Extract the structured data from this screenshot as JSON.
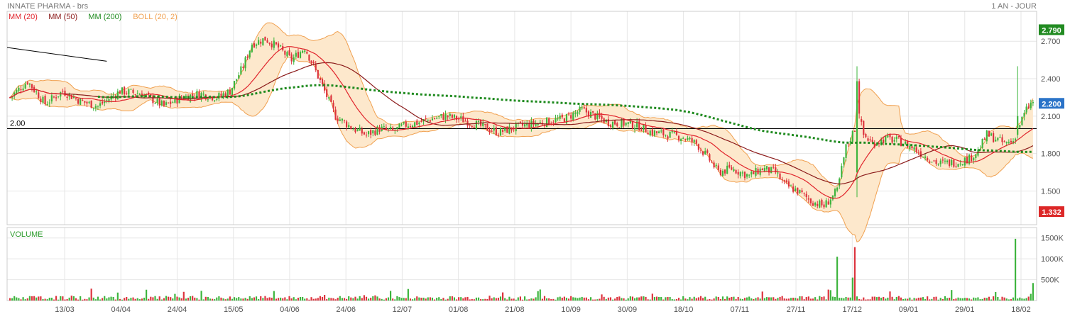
{
  "header": {
    "title": "INNATE PHARMA - brs",
    "period": "1 AN - JOUR"
  },
  "legend": [
    {
      "label": "MM (20)",
      "color": "#e0242c"
    },
    {
      "label": "MM (50)",
      "color": "#8b1a1a"
    },
    {
      "label": "MM (200)",
      "color": "#1e8a1e"
    },
    {
      "label": "BOLL (20, 2)",
      "color": "#f0a050"
    }
  ],
  "colors": {
    "up": "#3cb43c",
    "down": "#dc323c",
    "boll_fill": "#fde8cc",
    "boll_line": "#f0a050",
    "grid": "#e6e6e6"
  },
  "chart_data": [
    {
      "type": "candlestick",
      "title": "INNATE PHARMA - brs",
      "x_tick_labels": [
        "13/03",
        "04/04",
        "24/04",
        "15/05",
        "04/06",
        "24/06",
        "12/07",
        "01/08",
        "21/08",
        "10/09",
        "30/09",
        "18/10",
        "07/11",
        "27/11",
        "17/12",
        "09/01",
        "29/01",
        "18/02"
      ],
      "y_ticks": [
        1.5,
        1.8,
        2.1,
        2.4,
        2.7
      ],
      "y_tick_labels": [
        "1.500",
        "1.800",
        "2.100",
        "2.400",
        "2.700"
      ],
      "ylim": [
        1.23,
        2.94
      ],
      "reference_line": {
        "value": 2.0,
        "label": "2.00"
      },
      "badges": [
        {
          "label": "2.790",
          "value": 2.79,
          "color": "#228b22"
        },
        {
          "label": "2.200",
          "value": 2.2,
          "color": "#2a73c8"
        },
        {
          "label": "1.332",
          "value": 1.332,
          "color": "#dc2828"
        }
      ],
      "anchors": [
        [
          0,
          2.25
        ],
        [
          8,
          2.38
        ],
        [
          16,
          2.2
        ],
        [
          24,
          2.3
        ],
        [
          32,
          2.22
        ],
        [
          40,
          2.18
        ],
        [
          50,
          2.3
        ],
        [
          60,
          2.28
        ],
        [
          70,
          2.18
        ],
        [
          78,
          2.25
        ],
        [
          86,
          2.28
        ],
        [
          94,
          2.25
        ],
        [
          100,
          2.3
        ],
        [
          106,
          2.5
        ],
        [
          110,
          2.68
        ],
        [
          116,
          2.72
        ],
        [
          122,
          2.65
        ],
        [
          128,
          2.55
        ],
        [
          134,
          2.65
        ],
        [
          138,
          2.5
        ],
        [
          143,
          2.3
        ],
        [
          148,
          2.1
        ],
        [
          152,
          2.05
        ],
        [
          156,
          2.0
        ],
        [
          162,
          1.95
        ],
        [
          168,
          2.0
        ],
        [
          174,
          1.98
        ],
        [
          180,
          2.03
        ],
        [
          186,
          2.05
        ],
        [
          192,
          2.08
        ],
        [
          198,
          2.1
        ],
        [
          206,
          2.07
        ],
        [
          214,
          2.02
        ],
        [
          222,
          1.97
        ],
        [
          232,
          2.02
        ],
        [
          242,
          2.05
        ],
        [
          252,
          2.08
        ],
        [
          260,
          2.15
        ],
        [
          266,
          2.1
        ],
        [
          272,
          2.05
        ],
        [
          280,
          2.04
        ],
        [
          286,
          2.02
        ],
        [
          292,
          1.97
        ],
        [
          300,
          1.95
        ],
        [
          306,
          1.93
        ],
        [
          312,
          1.88
        ],
        [
          318,
          1.75
        ],
        [
          322,
          1.65
        ],
        [
          328,
          1.68
        ],
        [
          336,
          1.62
        ],
        [
          342,
          1.68
        ],
        [
          348,
          1.65
        ],
        [
          352,
          1.55
        ],
        [
          358,
          1.5
        ],
        [
          364,
          1.42
        ],
        [
          370,
          1.38
        ],
        [
          376,
          1.5
        ],
        [
          380,
          1.85
        ],
        [
          384,
          2.0
        ],
        [
          386,
          2.1
        ],
        [
          388,
          1.95
        ],
        [
          392,
          1.88
        ],
        [
          398,
          1.92
        ],
        [
          404,
          1.9
        ],
        [
          410,
          1.85
        ],
        [
          416,
          1.78
        ],
        [
          422,
          1.72
        ],
        [
          430,
          1.73
        ],
        [
          436,
          1.76
        ],
        [
          440,
          1.82
        ],
        [
          444,
          1.95
        ],
        [
          448,
          1.92
        ],
        [
          452,
          1.88
        ],
        [
          456,
          1.9
        ],
        [
          458,
          2.0
        ],
        [
          462,
          2.15
        ],
        [
          464,
          2.2
        ]
      ],
      "spikes": [
        {
          "index": 385,
          "open": 1.65,
          "high": 2.5,
          "low": 1.45,
          "close": 2.38
        },
        {
          "index": 386,
          "open": 2.38,
          "high": 2.4,
          "low": 2.08,
          "close": 2.12
        },
        {
          "index": 458,
          "open": 1.95,
          "high": 2.5,
          "low": 1.92,
          "close": 2.1
        }
      ],
      "trend_line": {
        "from": [
          0,
          2.65
        ],
        "to": [
          44,
          2.54
        ]
      },
      "candle_count": 466,
      "series": [
        {
          "name": "MM (20)",
          "ma_period": 20,
          "color": "#e0242c"
        },
        {
          "name": "MM (50)",
          "ma_period": 50,
          "color": "#8b1a1a"
        },
        {
          "name": "MM (200)",
          "ma_period": 200,
          "color": "#1e8a1e"
        },
        {
          "name": "BOLL (20, 2)",
          "ma_period": 20,
          "stddev": 2,
          "color": "#f0a050"
        }
      ]
    },
    {
      "type": "bar",
      "title": "VOLUME",
      "y_ticks": [
        500000,
        1000000,
        1500000
      ],
      "y_tick_labels": [
        "500K",
        "1000K",
        "1500K"
      ],
      "ylim": [
        0,
        1750000
      ],
      "spikes": [
        {
          "index": 376,
          "value": 1050000
        },
        {
          "index": 384,
          "value": 1280000
        },
        {
          "index": 457,
          "value": 1480000
        },
        {
          "index": 383,
          "value": 550000
        },
        {
          "index": 465,
          "value": 420000
        }
      ]
    }
  ]
}
